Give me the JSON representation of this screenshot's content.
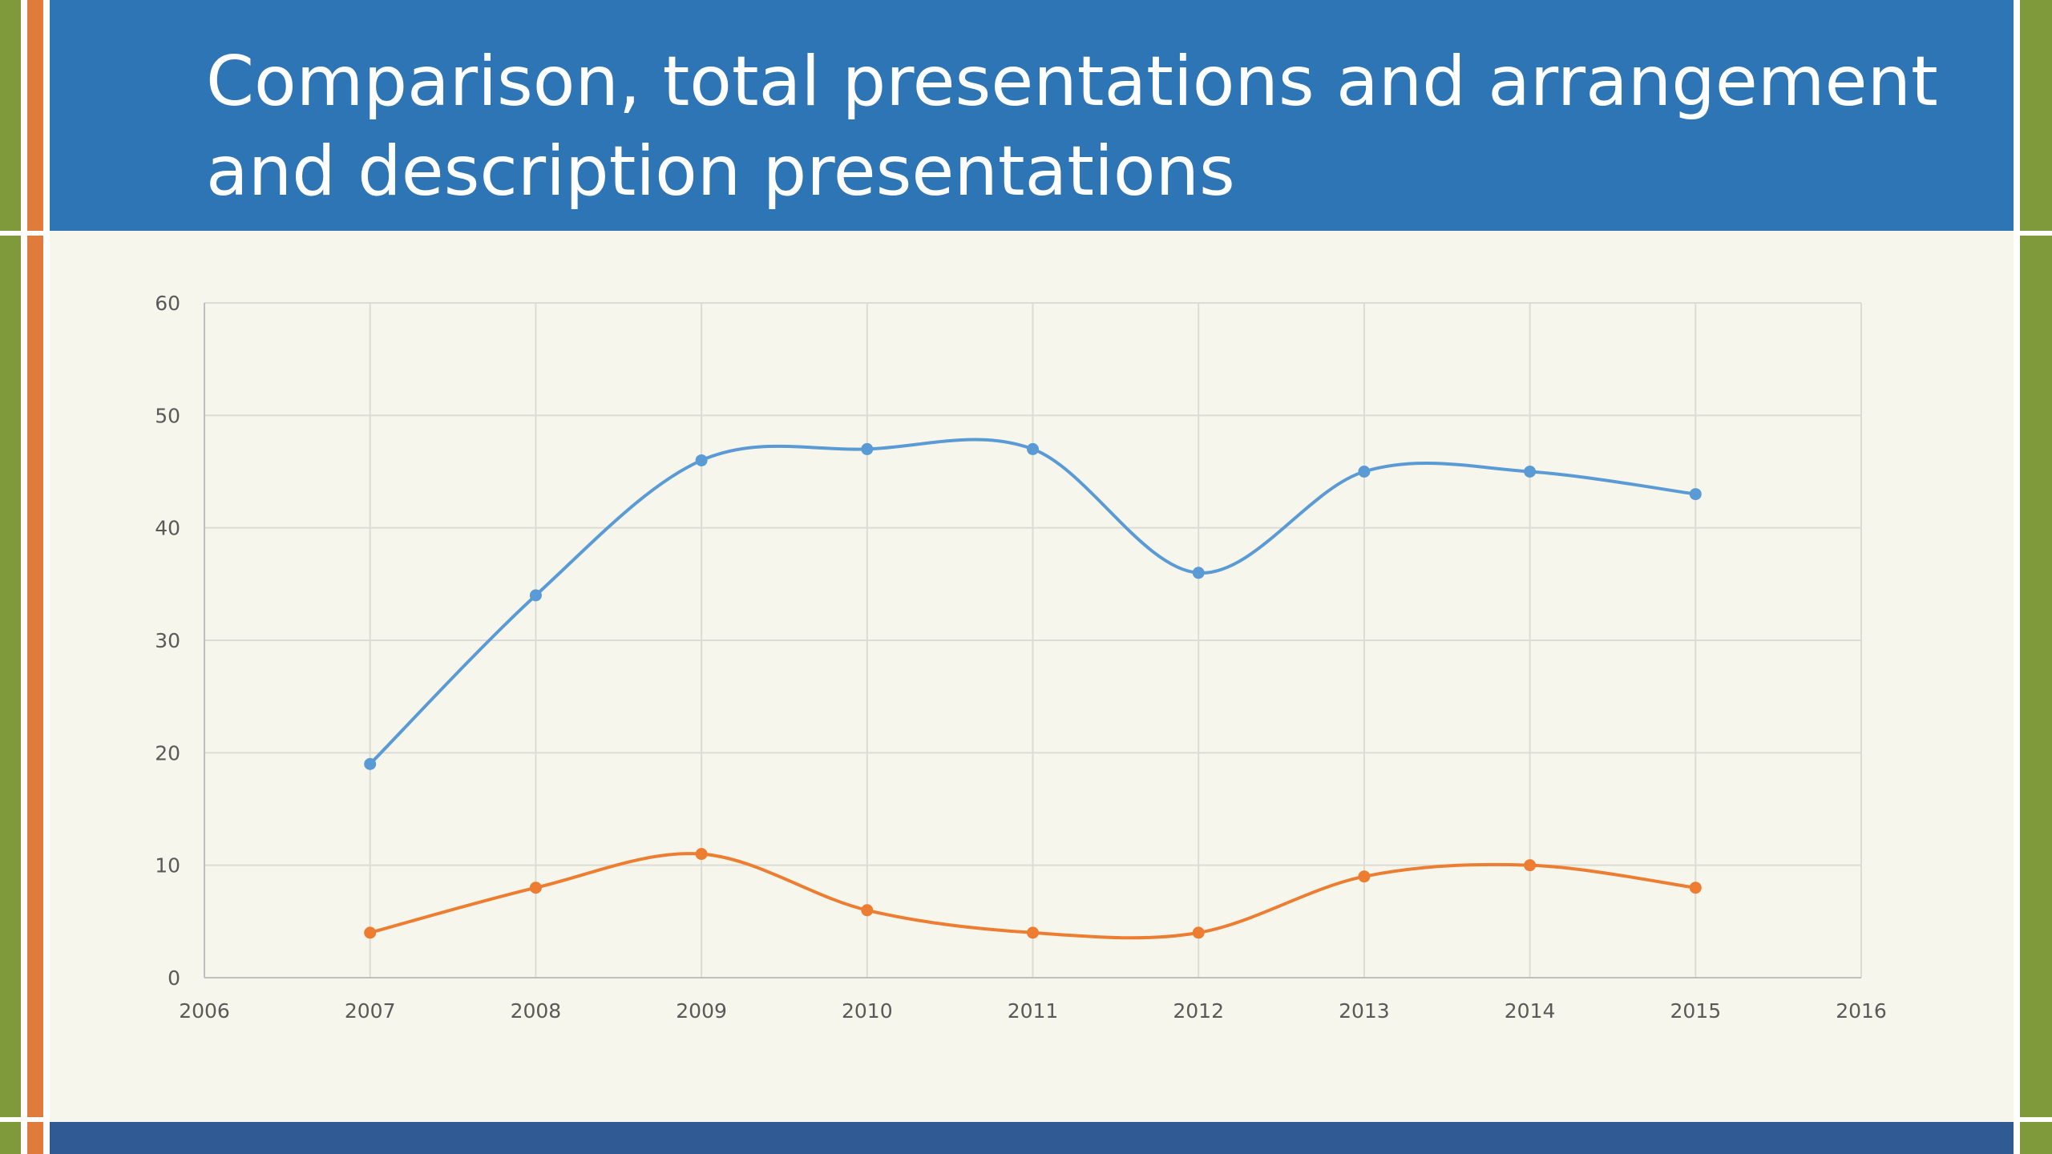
{
  "slide": {
    "title": "Comparison, total presentations and arrangement and description presentations"
  },
  "colors": {
    "title_banner": "#2e75b5",
    "bottom_banner": "#2f5a94",
    "border_green": "#7f9a3a",
    "border_orange": "#e07b3c",
    "background": "#f7f6ec",
    "series_total": "#5b9bd5",
    "series_arrangement": "#ed7d31"
  },
  "chart_data": {
    "type": "scatter",
    "subtype": "smooth-lines-with-markers",
    "title": "",
    "xlabel": "",
    "ylabel": "",
    "xlim": [
      2006,
      2016
    ],
    "ylim": [
      0,
      60
    ],
    "x_ticks": [
      "2006",
      "2007",
      "2008",
      "2009",
      "2010",
      "2011",
      "2012",
      "2013",
      "2014",
      "2015",
      "2016"
    ],
    "y_ticks": [
      "0",
      "10",
      "20",
      "30",
      "40",
      "50",
      "60"
    ],
    "grid": true,
    "legend": "none",
    "series": [
      {
        "color": "#5b9bd5",
        "x": [
          2007,
          2008,
          2009,
          2010,
          2011,
          2012,
          2013,
          2014,
          2015
        ],
        "y": [
          19,
          34,
          46,
          47,
          47,
          36,
          45,
          45,
          43
        ]
      },
      {
        "color": "#ed7d31",
        "x": [
          2007,
          2008,
          2009,
          2010,
          2011,
          2012,
          2013,
          2014,
          2015
        ],
        "y": [
          4,
          8,
          11,
          6,
          4,
          4,
          9,
          10,
          8
        ]
      }
    ]
  }
}
